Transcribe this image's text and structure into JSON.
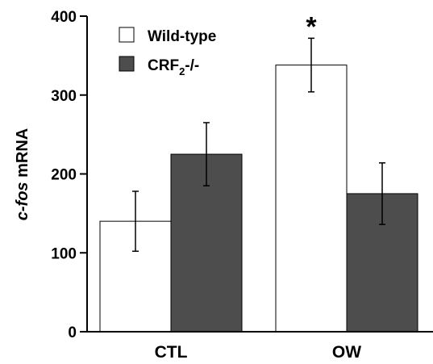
{
  "chart_data": {
    "type": "bar",
    "categories": [
      "CTL",
      "OW"
    ],
    "series": [
      {
        "name": "Wild-type",
        "values": [
          140,
          338
        ],
        "errors": [
          38,
          34
        ],
        "color": "#ffffff"
      },
      {
        "name": "CRF2-/-",
        "values": [
          225,
          175
        ],
        "errors": [
          40,
          39
        ],
        "color": "#4d4d4d"
      }
    ],
    "ylabel": {
      "italic": "c-fos",
      "rest": " mRNA"
    },
    "ylim": [
      0,
      400
    ],
    "yticks": [
      0,
      100,
      200,
      300,
      400
    ],
    "legend": {
      "position": "top-left",
      "items": [
        {
          "text": "Wild-type"
        },
        {
          "base": "CRF",
          "sub": "2",
          "suffix": "-/-"
        }
      ]
    },
    "annotation": {
      "text": "*",
      "category": "OW",
      "series": "Wild-type"
    },
    "grid": false
  }
}
